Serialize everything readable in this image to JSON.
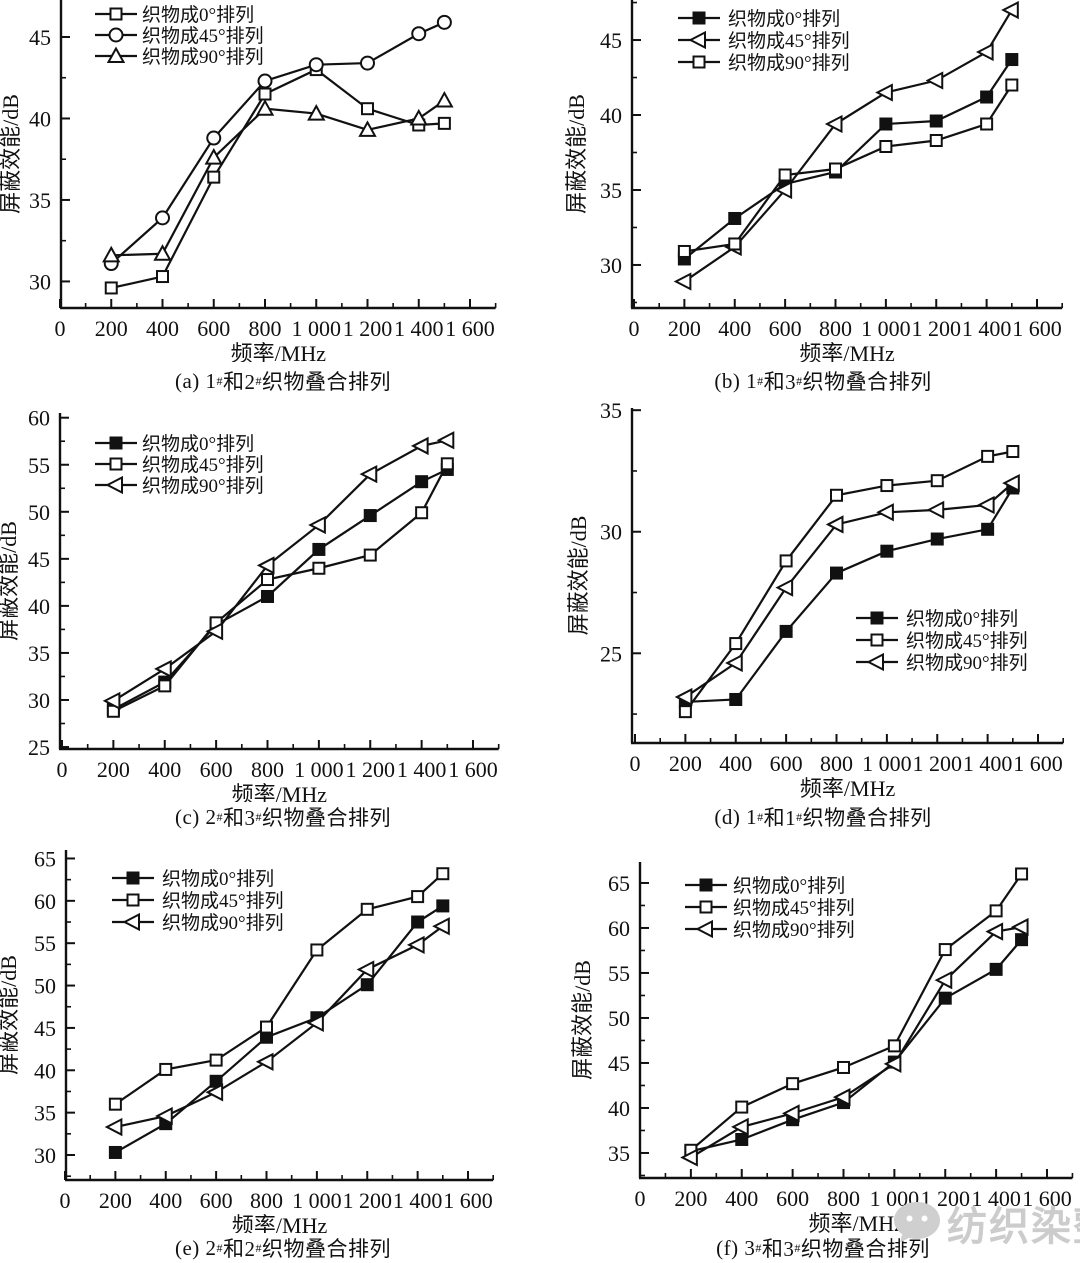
{
  "page": {
    "background": "#ffffff",
    "line_color": "#111111",
    "watermark": {
      "text": "纺织染整",
      "icon": "wechat-bubble-icon",
      "color": "#cccccc"
    }
  },
  "chart_data": [
    {
      "id": "a",
      "type": "line",
      "caption": "(a) 1#和2#织物叠合排列",
      "xlabel": "频率/MHz",
      "ylabel": "屏蔽效能/dB",
      "x": [
        200,
        400,
        600,
        800,
        1000,
        1200,
        1400,
        1500
      ],
      "xlim": [
        0,
        1700
      ],
      "x_major_ticks": [
        0,
        200,
        400,
        600,
        800,
        1000,
        1200,
        1400,
        1600
      ],
      "x_tick_labels": [
        "0",
        "200",
        "400",
        "600",
        "800",
        "1 000",
        "1 200",
        "1 400",
        "1 600"
      ],
      "x_minor_step": 100,
      "ylim": [
        28.37,
        47.27
      ],
      "yticks": [
        30,
        35,
        40,
        45
      ],
      "y_minor_step": 2.5,
      "top_cut": true,
      "grid": false,
      "legend_position": "top-left",
      "series": [
        {
          "name": "织物成0°排列",
          "marker": "square-open",
          "values": [
            29.6,
            30.3,
            36.4,
            41.5,
            43.0,
            40.6,
            39.6,
            39.7
          ]
        },
        {
          "name": "织物成45°排列",
          "marker": "circle-open",
          "values": [
            31.1,
            33.9,
            38.8,
            42.3,
            43.3,
            43.4,
            45.2,
            45.9
          ]
        },
        {
          "name": "织物成90°排列",
          "marker": "triangle-up-open",
          "values": [
            31.6,
            31.7,
            37.6,
            40.6,
            40.3,
            39.3,
            40.0,
            41.1
          ]
        }
      ]
    },
    {
      "id": "b",
      "type": "line",
      "caption": "(b) 1#和3#织物叠合排列",
      "xlabel": "频率/MHz",
      "ylabel": "屏蔽效能/dB",
      "x": [
        200,
        400,
        600,
        800,
        1000,
        1200,
        1400,
        1500
      ],
      "xlim": [
        0,
        1700
      ],
      "x_major_ticks": [
        0,
        200,
        400,
        600,
        800,
        1000,
        1200,
        1400,
        1600
      ],
      "x_tick_labels": [
        "0",
        "200",
        "400",
        "600",
        "800",
        "1 000",
        "1 200",
        "1 400",
        "1 600"
      ],
      "x_minor_step": 100,
      "ylim": [
        27.13,
        47.67
      ],
      "yticks": [
        30,
        35,
        40,
        45
      ],
      "y_minor_step": 2.5,
      "top_cut": true,
      "grid": false,
      "legend_position": "top-left",
      "series": [
        {
          "name": "织物成0°排列",
          "marker": "square-filled",
          "values": [
            30.4,
            33.1,
            35.4,
            36.2,
            39.4,
            39.6,
            41.2,
            43.7
          ]
        },
        {
          "name": "织物成45°排列",
          "marker": "triangle-left-open",
          "values": [
            28.9,
            31.2,
            35.0,
            39.4,
            41.5,
            42.3,
            44.2,
            47.0
          ]
        },
        {
          "name": "织物成90°排列",
          "marker": "square-open",
          "values": [
            30.9,
            31.4,
            36.0,
            36.4,
            37.9,
            38.3,
            39.4,
            42.0
          ]
        }
      ]
    },
    {
      "id": "c",
      "type": "line",
      "caption": "(c) 2#和3#织物叠合排列",
      "xlabel": "频率/MHz",
      "ylabel": "屏蔽效能/dB",
      "x": [
        200,
        400,
        600,
        800,
        1000,
        1200,
        1400,
        1500
      ],
      "xlim": [
        0,
        1700
      ],
      "x_major_ticks": [
        0,
        200,
        400,
        600,
        800,
        1000,
        1200,
        1400,
        1600
      ],
      "x_tick_labels": [
        "0",
        "200",
        "400",
        "600",
        "800",
        "1 000",
        "1 200",
        "1 400",
        "1 600"
      ],
      "x_minor_step": 100,
      "ylim": [
        24.79,
        60.5
      ],
      "yticks": [
        25,
        30,
        35,
        40,
        45,
        50,
        55,
        60
      ],
      "y_minor_step": 2.5,
      "top_cut": false,
      "grid": false,
      "legend_position": "top-left",
      "series": [
        {
          "name": "织物成0°排列",
          "marker": "square-filled",
          "values": [
            29.0,
            31.9,
            38.0,
            41.0,
            46.0,
            49.6,
            53.2,
            54.5
          ]
        },
        {
          "name": "织物成45°排列",
          "marker": "square-open",
          "values": [
            28.8,
            31.5,
            38.2,
            42.8,
            44.0,
            45.4,
            49.9,
            55.1
          ]
        },
        {
          "name": "织物成90°排列",
          "marker": "triangle-left-open",
          "values": [
            29.9,
            33.3,
            37.3,
            44.3,
            48.6,
            54.0,
            57.0,
            57.6
          ]
        }
      ]
    },
    {
      "id": "d",
      "type": "line",
      "caption": "(d) 1#和1#织物叠合排列",
      "xlabel": "频率/MHz",
      "ylabel": "屏蔽效能/dB",
      "x": [
        200,
        400,
        600,
        800,
        1000,
        1200,
        1400,
        1500
      ],
      "xlim": [
        0,
        1700
      ],
      "x_major_ticks": [
        0,
        200,
        400,
        600,
        800,
        1000,
        1200,
        1400,
        1600
      ],
      "x_tick_labels": [
        "0",
        "200",
        "400",
        "600",
        "800",
        "1 000",
        "1 200",
        "1 400",
        "1 600"
      ],
      "x_minor_step": 100,
      "ylim": [
        21.31,
        35.09
      ],
      "yticks": [
        25,
        30,
        35
      ],
      "y_minor_step": 2.5,
      "top_cut": false,
      "grid": false,
      "legend_position": "middle-right",
      "series": [
        {
          "name": "织物成0°排列",
          "marker": "square-filled",
          "values": [
            23.0,
            23.1,
            25.9,
            28.3,
            29.2,
            29.7,
            30.1,
            31.8
          ]
        },
        {
          "name": "织物成45°排列",
          "marker": "square-open",
          "values": [
            22.6,
            25.4,
            28.8,
            31.5,
            31.9,
            32.1,
            33.1,
            33.3
          ]
        },
        {
          "name": "织物成90°排列",
          "marker": "triangle-left-open",
          "values": [
            23.2,
            24.6,
            27.7,
            30.3,
            30.8,
            30.9,
            31.1,
            32.0
          ]
        }
      ]
    },
    {
      "id": "e",
      "type": "line",
      "caption": "(e) 2#和2#织物叠合排列",
      "xlabel": "频率/MHz",
      "ylabel": "屏蔽效能/dB",
      "x": [
        200,
        400,
        600,
        800,
        1000,
        1200,
        1400,
        1500
      ],
      "xlim": [
        0,
        1700
      ],
      "x_major_ticks": [
        0,
        200,
        400,
        600,
        800,
        1000,
        1200,
        1400,
        1600
      ],
      "x_tick_labels": [
        "0",
        "200",
        "400",
        "600",
        "800",
        "1 000",
        "1 200",
        "1 400",
        "1 600"
      ],
      "x_minor_step": 100,
      "ylim": [
        27.05,
        66.0
      ],
      "yticks": [
        30,
        35,
        40,
        45,
        50,
        55,
        60,
        65
      ],
      "y_minor_step": 2.5,
      "top_cut": false,
      "grid": false,
      "legend_position": "top-left",
      "series": [
        {
          "name": "织物成0°排列",
          "marker": "square-filled",
          "values": [
            30.3,
            33.7,
            38.7,
            43.9,
            46.2,
            50.1,
            57.5,
            59.4
          ]
        },
        {
          "name": "织物成45°排列",
          "marker": "square-open",
          "values": [
            36.0,
            40.1,
            41.2,
            45.1,
            54.2,
            59.0,
            60.5,
            63.2
          ]
        },
        {
          "name": "织物成90°排列",
          "marker": "triangle-left-open",
          "values": [
            33.3,
            34.6,
            37.4,
            41.0,
            45.6,
            51.9,
            54.8,
            57.0
          ]
        }
      ]
    },
    {
      "id": "f",
      "type": "line",
      "caption": "(f) 3#和3#织物叠合排列",
      "xlabel": "频率/MHz",
      "ylabel": "屏蔽效能/dB",
      "x": [
        200,
        400,
        600,
        800,
        1000,
        1200,
        1400,
        1500
      ],
      "xlim": [
        0,
        1700
      ],
      "x_major_ticks": [
        0,
        200,
        400,
        600,
        800,
        1000,
        1200,
        1400,
        1600
      ],
      "x_tick_labels": [
        "0",
        "200",
        "400",
        "600",
        "800",
        "1 000",
        "1 200",
        "1 400",
        "1 600"
      ],
      "x_minor_step": 100,
      "ylim": [
        32.22,
        67.33
      ],
      "yticks": [
        35,
        40,
        45,
        50,
        55,
        60,
        65
      ],
      "y_minor_step": 2.5,
      "top_cut": false,
      "grid": false,
      "legend_position": "top-left",
      "series": [
        {
          "name": "织物成0°排列",
          "marker": "square-filled",
          "values": [
            35.2,
            36.5,
            38.7,
            40.6,
            45.1,
            52.2,
            55.4,
            58.7
          ]
        },
        {
          "name": "织物成45°排列",
          "marker": "square-open",
          "values": [
            35.3,
            40.1,
            42.7,
            44.5,
            46.9,
            57.6,
            61.9,
            66.0
          ]
        },
        {
          "name": "织物成90°排列",
          "marker": "triangle-left-open",
          "values": [
            34.5,
            37.9,
            39.4,
            41.2,
            44.9,
            54.2,
            59.6,
            60.1
          ]
        }
      ]
    }
  ]
}
